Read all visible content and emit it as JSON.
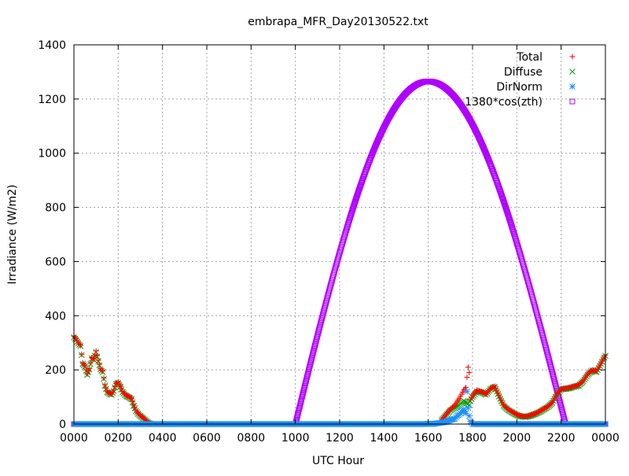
{
  "chart_data": {
    "type": "scatter",
    "title": "embrapa_MFR_Day20130522.txt",
    "xlabel": "UTC Hour",
    "ylabel": "Irradiance (W/m2)",
    "xlim": [
      0,
      24
    ],
    "ylim": [
      0,
      1400
    ],
    "xticks": [
      {
        "value": 0,
        "label": "0000"
      },
      {
        "value": 2,
        "label": "0200"
      },
      {
        "value": 4,
        "label": "0400"
      },
      {
        "value": 6,
        "label": "0600"
      },
      {
        "value": 8,
        "label": "0800"
      },
      {
        "value": 10,
        "label": "1000"
      },
      {
        "value": 12,
        "label": "1200"
      },
      {
        "value": 14,
        "label": "1400"
      },
      {
        "value": 16,
        "label": "1600"
      },
      {
        "value": 18,
        "label": "1800"
      },
      {
        "value": 20,
        "label": "2000"
      },
      {
        "value": 22,
        "label": "2200"
      },
      {
        "value": 24,
        "label": "0000"
      }
    ],
    "yticks": [
      0,
      200,
      400,
      600,
      800,
      1000,
      1200,
      1400
    ],
    "grid": true,
    "legend_position": "top-right",
    "series": [
      {
        "name": "Total",
        "color": "#ff0000",
        "marker": "plus",
        "points": [
          [
            0.0,
            325
          ],
          [
            0.1,
            315
          ],
          [
            0.2,
            300
          ],
          [
            0.3,
            290
          ],
          [
            0.4,
            225
          ],
          [
            0.5,
            215
          ],
          [
            0.6,
            185
          ],
          [
            0.7,
            205
          ],
          [
            0.8,
            245
          ],
          [
            0.9,
            240
          ],
          [
            1.0,
            270
          ],
          [
            1.1,
            235
          ],
          [
            1.2,
            205
          ],
          [
            1.3,
            195
          ],
          [
            1.4,
            145
          ],
          [
            1.5,
            120
          ],
          [
            1.6,
            115
          ],
          [
            1.7,
            110
          ],
          [
            1.8,
            125
          ],
          [
            1.9,
            150
          ],
          [
            2.0,
            155
          ],
          [
            2.1,
            140
          ],
          [
            2.2,
            120
          ],
          [
            2.3,
            110
          ],
          [
            2.4,
            105
          ],
          [
            2.5,
            100
          ],
          [
            2.6,
            95
          ],
          [
            2.7,
            70
          ],
          [
            2.8,
            50
          ],
          [
            2.9,
            40
          ],
          [
            3.0,
            32
          ],
          [
            3.1,
            25
          ],
          [
            3.2,
            18
          ],
          [
            3.3,
            10
          ],
          [
            3.4,
            4
          ],
          [
            3.5,
            0
          ],
          [
            16.6,
            15
          ],
          [
            16.8,
            35
          ],
          [
            17.0,
            55
          ],
          [
            17.2,
            70
          ],
          [
            17.4,
            95
          ],
          [
            17.5,
            110
          ],
          [
            17.6,
            125
          ],
          [
            17.7,
            135
          ],
          [
            17.8,
            210
          ],
          [
            17.85,
            190
          ],
          [
            17.9,
            90
          ],
          [
            18.0,
            105
          ],
          [
            18.2,
            125
          ],
          [
            18.4,
            120
          ],
          [
            18.6,
            110
          ],
          [
            18.8,
            130
          ],
          [
            19.0,
            140
          ],
          [
            19.2,
            105
          ],
          [
            19.4,
            70
          ],
          [
            19.6,
            55
          ],
          [
            19.8,
            45
          ],
          [
            20.0,
            35
          ],
          [
            20.2,
            30
          ],
          [
            20.4,
            28
          ],
          [
            20.6,
            32
          ],
          [
            20.8,
            38
          ],
          [
            21.0,
            45
          ],
          [
            21.2,
            55
          ],
          [
            21.4,
            65
          ],
          [
            21.6,
            80
          ],
          [
            21.8,
            110
          ],
          [
            22.0,
            130
          ],
          [
            22.2,
            132
          ],
          [
            22.4,
            135
          ],
          [
            22.6,
            140
          ],
          [
            22.8,
            145
          ],
          [
            23.0,
            160
          ],
          [
            23.2,
            185
          ],
          [
            23.4,
            200
          ],
          [
            23.6,
            195
          ],
          [
            23.8,
            225
          ],
          [
            23.9,
            240
          ],
          [
            24.0,
            255
          ]
        ]
      },
      {
        "name": "Diffuse",
        "color": "#00a000",
        "marker": "cross",
        "points": [
          [
            0.0,
            320
          ],
          [
            0.1,
            310
          ],
          [
            0.2,
            298
          ],
          [
            0.3,
            288
          ],
          [
            0.4,
            222
          ],
          [
            0.5,
            212
          ],
          [
            0.6,
            182
          ],
          [
            0.7,
            202
          ],
          [
            0.8,
            242
          ],
          [
            0.9,
            238
          ],
          [
            1.0,
            266
          ],
          [
            1.1,
            232
          ],
          [
            1.2,
            202
          ],
          [
            1.3,
            192
          ],
          [
            1.4,
            142
          ],
          [
            1.5,
            118
          ],
          [
            1.6,
            112
          ],
          [
            1.7,
            108
          ],
          [
            1.8,
            122
          ],
          [
            1.9,
            148
          ],
          [
            2.0,
            152
          ],
          [
            2.1,
            138
          ],
          [
            2.2,
            118
          ],
          [
            2.3,
            108
          ],
          [
            2.4,
            102
          ],
          [
            2.5,
            98
          ],
          [
            2.6,
            92
          ],
          [
            2.7,
            68
          ],
          [
            2.8,
            48
          ],
          [
            2.9,
            38
          ],
          [
            3.0,
            30
          ],
          [
            3.1,
            23
          ],
          [
            3.2,
            16
          ],
          [
            3.3,
            9
          ],
          [
            3.4,
            3
          ],
          [
            3.5,
            0
          ],
          [
            16.6,
            14
          ],
          [
            16.8,
            32
          ],
          [
            17.0,
            50
          ],
          [
            17.2,
            60
          ],
          [
            17.4,
            70
          ],
          [
            17.5,
            78
          ],
          [
            17.6,
            85
          ],
          [
            17.7,
            80
          ],
          [
            17.8,
            75
          ],
          [
            17.85,
            70
          ],
          [
            17.9,
            85
          ],
          [
            18.0,
            100
          ],
          [
            18.2,
            120
          ],
          [
            18.4,
            118
          ],
          [
            18.6,
            108
          ],
          [
            18.8,
            128
          ],
          [
            19.0,
            138
          ],
          [
            19.2,
            102
          ],
          [
            19.4,
            68
          ],
          [
            19.6,
            52
          ],
          [
            19.8,
            42
          ],
          [
            20.0,
            33
          ],
          [
            20.2,
            28
          ],
          [
            20.4,
            26
          ],
          [
            20.6,
            30
          ],
          [
            20.8,
            36
          ],
          [
            21.0,
            43
          ],
          [
            21.2,
            53
          ],
          [
            21.4,
            63
          ],
          [
            21.6,
            78
          ],
          [
            21.8,
            108
          ],
          [
            22.0,
            128
          ],
          [
            22.2,
            130
          ],
          [
            22.4,
            133
          ],
          [
            22.6,
            138
          ],
          [
            22.8,
            142
          ],
          [
            23.0,
            158
          ],
          [
            23.2,
            182
          ],
          [
            23.4,
            198
          ],
          [
            23.6,
            192
          ],
          [
            23.8,
            222
          ],
          [
            23.9,
            238
          ],
          [
            24.0,
            252
          ]
        ]
      },
      {
        "name": "DirNorm",
        "color": "#1e90ff",
        "marker": "star",
        "points": [
          [
            0.0,
            0
          ],
          [
            1.0,
            0
          ],
          [
            2.0,
            0
          ],
          [
            3.0,
            0
          ],
          [
            4.0,
            0
          ],
          [
            5.0,
            0
          ],
          [
            6.0,
            0
          ],
          [
            7.0,
            0
          ],
          [
            8.0,
            0
          ],
          [
            9.0,
            0
          ],
          [
            10.0,
            0
          ],
          [
            11.0,
            0
          ],
          [
            12.0,
            0
          ],
          [
            13.0,
            0
          ],
          [
            14.0,
            0
          ],
          [
            15.0,
            0
          ],
          [
            15.9,
            0
          ],
          [
            16.0,
            2
          ],
          [
            16.2,
            0
          ],
          [
            16.4,
            3
          ],
          [
            16.6,
            5
          ],
          [
            16.8,
            8
          ],
          [
            17.0,
            15
          ],
          [
            17.2,
            20
          ],
          [
            17.3,
            30
          ],
          [
            17.4,
            35
          ],
          [
            17.5,
            45
          ],
          [
            17.6,
            55
          ],
          [
            17.7,
            40
          ],
          [
            17.75,
            120
          ],
          [
            17.8,
            60
          ],
          [
            17.85,
            30
          ],
          [
            17.9,
            10
          ],
          [
            18.0,
            0
          ],
          [
            18.5,
            0
          ],
          [
            19.0,
            0
          ],
          [
            19.5,
            0
          ],
          [
            20.0,
            0
          ],
          [
            20.5,
            0
          ],
          [
            21.0,
            0
          ],
          [
            21.5,
            0
          ],
          [
            22.0,
            0
          ],
          [
            22.5,
            0
          ],
          [
            23.0,
            0
          ],
          [
            23.5,
            0
          ],
          [
            24.0,
            0
          ]
        ]
      },
      {
        "name": "1380*cos(zth)",
        "color": "#b000ff",
        "marker": "square",
        "sunrise_hour": 10.0,
        "sunset_hour": 22.2,
        "peak_hour": 16.0,
        "peak_value": 1265
      }
    ]
  }
}
